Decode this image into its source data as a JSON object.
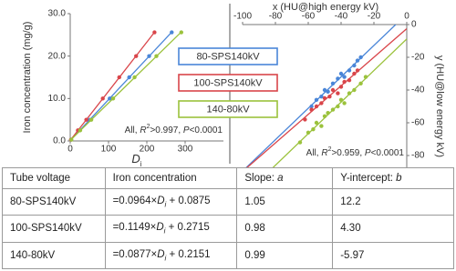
{
  "chart_data": [
    {
      "type": "scatter",
      "y_label": "Iron concentration (mg/g)",
      "x_label": [
        "D",
        "i"
      ],
      "annotation": [
        "All, ",
        "R",
        "2",
        ">0.997, ",
        "P",
        "<0.0001"
      ],
      "xlim": [
        0,
        400
      ],
      "xticks": [
        0,
        100,
        200,
        300
      ],
      "ylim": [
        0,
        30
      ],
      "yticks": [
        {
          "value": 0,
          "label": "0.0"
        },
        {
          "value": 10,
          "label": "10.0"
        },
        {
          "value": 20,
          "label": "20.0"
        },
        {
          "value": 30,
          "label": "30.0"
        }
      ],
      "x_axis_position": "bottom",
      "y_axis_position": "left",
      "trendline": "data",
      "series": [
        {
          "name": "80-SPS140kV",
          "color": "#4a86d8",
          "x": [
            2,
            25,
            51,
            103,
            154,
            206,
            265
          ],
          "values": [
            0.3,
            2.5,
            5.0,
            10.0,
            15.0,
            20.0,
            25.6
          ]
        },
        {
          "name": "100-SPS140kV",
          "color": "#d9454a",
          "x": [
            2,
            20,
            42,
            85,
            128,
            172,
            220
          ],
          "values": [
            0.3,
            2.5,
            5.0,
            10.0,
            15.0,
            20.0,
            25.6
          ]
        },
        {
          "name": "140-80kV",
          "color": "#9bc23c",
          "x": [
            3,
            26,
            55,
            112,
            168,
            225,
            290
          ],
          "values": [
            0.3,
            2.5,
            5.0,
            10.0,
            15.0,
            20.0,
            25.6
          ]
        }
      ]
    },
    {
      "type": "scatter",
      "x_label": "x (HU@high energy kV)",
      "y_label": "y (HU@low energy kV)",
      "annotation": [
        "All, ",
        "R",
        "2",
        ">0.959, ",
        "P",
        "<0.0001"
      ],
      "xlim": [
        -100,
        0
      ],
      "xticks": [
        -100,
        -80,
        -60,
        -40,
        -20,
        0
      ],
      "ylim": [
        -100,
        0
      ],
      "yticks": [
        0,
        -20,
        -40,
        -60,
        -80,
        -100
      ],
      "x_axis_position": "top",
      "y_axis_position": "right",
      "trendline": "axis",
      "series": [
        {
          "color": "#4a86d8",
          "x": [
            -58,
            -55,
            -52,
            -50,
            -48,
            -45,
            -42,
            -40,
            -38,
            -35,
            -32,
            -30,
            -28
          ],
          "values": [
            -50,
            -46,
            -44,
            -40,
            -41,
            -36,
            -33,
            -30,
            -32,
            -28,
            -25,
            -22,
            -20
          ]
        },
        {
          "color": "#d9454a",
          "x": [
            -62,
            -58,
            -55,
            -52,
            -50,
            -47,
            -45,
            -42,
            -40,
            -38,
            -35,
            -32,
            -30
          ],
          "values": [
            -58,
            -52,
            -50,
            -48,
            -45,
            -44,
            -40,
            -42,
            -38,
            -35,
            -34,
            -30,
            -28
          ]
        },
        {
          "color": "#9bc23c",
          "x": [
            -65,
            -60,
            -57,
            -55,
            -52,
            -50,
            -48,
            -45,
            -42,
            -40,
            -38,
            -35,
            -32,
            -28,
            -25
          ],
          "values": [
            -72,
            -66,
            -64,
            -60,
            -62,
            -56,
            -54,
            -52,
            -50,
            -46,
            -48,
            -42,
            -40,
            -36,
            -32
          ]
        }
      ]
    }
  ],
  "table": {
    "header": [
      [
        "Tube voltage"
      ],
      [
        "Iron concentration"
      ],
      [
        "Slope: ",
        "a"
      ],
      [
        "Y-intercept: ",
        "b"
      ]
    ],
    "rows": [
      [
        [
          "80-SPS140kV"
        ],
        [
          "=0.0964×",
          "D",
          "i",
          " + 0.0875"
        ],
        [
          "1.05"
        ],
        [
          "12.2"
        ]
      ],
      [
        [
          "100-SPS140kV"
        ],
        [
          "=0.1149×",
          "D",
          "i",
          " + 0.2715"
        ],
        [
          "0.98"
        ],
        [
          "4.30"
        ]
      ],
      [
        [
          "140-80kV"
        ],
        [
          "=0.0877×",
          "D",
          "i",
          " + 0.2151"
        ],
        [
          "0.99"
        ],
        [
          "-5.97"
        ]
      ]
    ]
  }
}
